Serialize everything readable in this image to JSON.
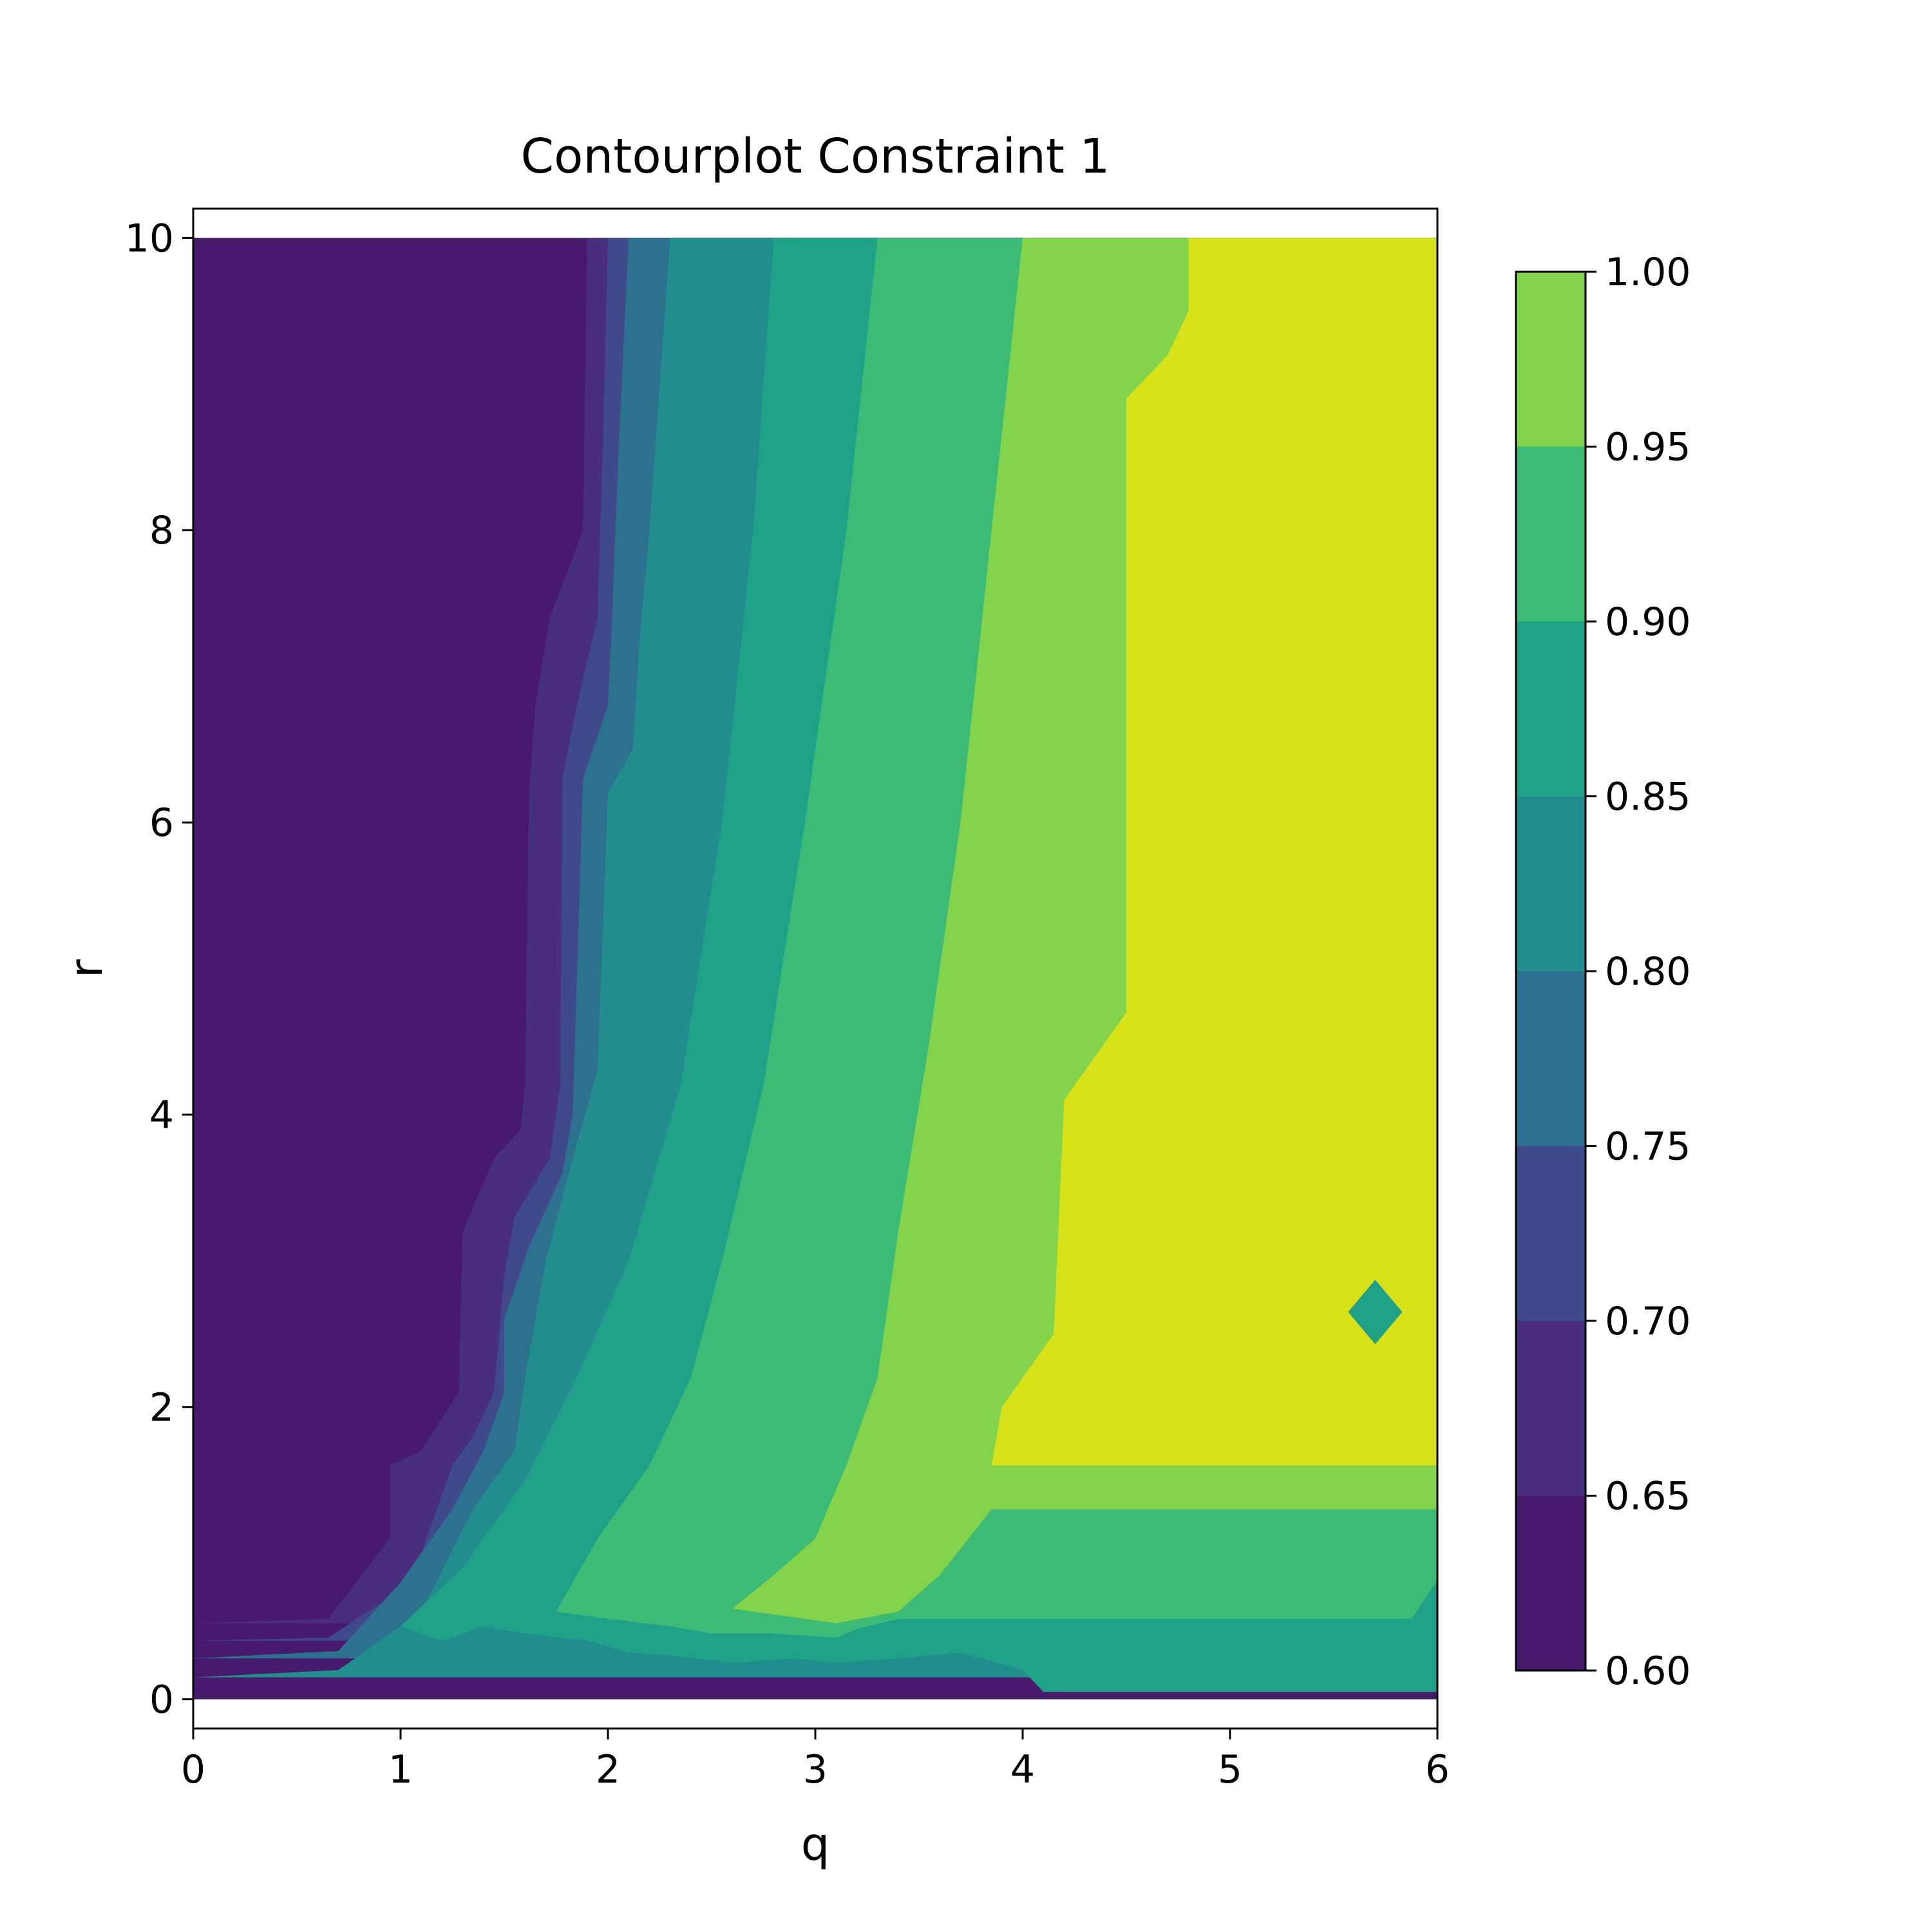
{
  "chart_data": {
    "type": "heatmap",
    "subtype": "filled-contour",
    "title": "Contourplot Constraint 1",
    "xlabel": "q",
    "ylabel": "r",
    "xlim": [
      0,
      6
    ],
    "ylim": [
      -0.2,
      10.2
    ],
    "data_extent": {
      "x": [
        0,
        6
      ],
      "y": [
        0,
        10
      ]
    },
    "x_ticks": [
      0,
      1,
      2,
      3,
      4,
      5,
      6
    ],
    "x_tick_labels": [
      "0",
      "1",
      "2",
      "3",
      "4",
      "5",
      "6"
    ],
    "y_ticks": [
      0,
      2,
      4,
      6,
      8,
      10
    ],
    "y_tick_labels": [
      "0",
      "2",
      "4",
      "6",
      "8",
      "10"
    ],
    "grid": false,
    "colormap": "viridis",
    "levels": [
      0.6,
      0.65,
      0.7,
      0.75,
      0.8,
      0.85,
      0.9,
      0.95,
      1.0
    ],
    "colorbar": {
      "placement": "right",
      "ticks": [
        0.6,
        0.65,
        0.7,
        0.75,
        0.8,
        0.85,
        0.9,
        0.95,
        1.0
      ],
      "tick_labels": [
        "0.60",
        "0.65",
        "0.70",
        "0.75",
        "0.80",
        "0.85",
        "0.90",
        "0.95",
        "1.00"
      ]
    },
    "band_colors": [
      "#481a6c",
      "#472f7d",
      "#3e4a89",
      "#2c728e",
      "#218e8d",
      "#1fa187",
      "#3bbb75",
      "#84d44b",
      "#d8e219"
    ],
    "boundaries": [
      {
        "level": 0.65,
        "points": [
          [
            1.9,
            10
          ],
          [
            1.88,
            8.0
          ],
          [
            1.72,
            7.4
          ],
          [
            1.65,
            6.8
          ],
          [
            1.62,
            6.2
          ],
          [
            1.6,
            4.2
          ],
          [
            1.58,
            3.9
          ],
          [
            1.45,
            3.7
          ],
          [
            1.3,
            3.2
          ],
          [
            1.28,
            2.1
          ],
          [
            1.1,
            1.7
          ],
          [
            0.95,
            1.6
          ],
          [
            0.95,
            1.1
          ],
          [
            0.65,
            0.55
          ],
          [
            0,
            0.52
          ]
        ]
      },
      {
        "level": 0.7,
        "points": [
          [
            2.0,
            10
          ],
          [
            1.98,
            8.8
          ],
          [
            1.95,
            7.4
          ],
          [
            1.85,
            6.8
          ],
          [
            1.78,
            6.3
          ],
          [
            1.77,
            4.2
          ],
          [
            1.72,
            3.7
          ],
          [
            1.55,
            3.3
          ],
          [
            1.5,
            2.9
          ],
          [
            1.45,
            2.1
          ],
          [
            1.35,
            1.8
          ],
          [
            1.25,
            1.6
          ],
          [
            1.1,
            1.0
          ],
          [
            0.95,
            0.7
          ],
          [
            0.65,
            0.42
          ],
          [
            0,
            0.4
          ]
        ]
      },
      {
        "level": 0.75,
        "points": [
          [
            2.1,
            10
          ],
          [
            2.05,
            8.5
          ],
          [
            2.02,
            7.4
          ],
          [
            2.0,
            6.8
          ],
          [
            1.88,
            6.3
          ],
          [
            1.83,
            4.0
          ],
          [
            1.78,
            3.6
          ],
          [
            1.62,
            3.1
          ],
          [
            1.5,
            2.6
          ],
          [
            1.5,
            2.1
          ],
          [
            1.4,
            1.7
          ],
          [
            1.25,
            1.3
          ],
          [
            1.0,
            0.8
          ],
          [
            0.7,
            0.33
          ],
          [
            0,
            0.28
          ]
        ]
      },
      {
        "level": 0.8,
        "points": [
          [
            2.3,
            10
          ],
          [
            2.2,
            8.0
          ],
          [
            2.15,
            7.2
          ],
          [
            2.12,
            6.5
          ],
          [
            2.0,
            6.2
          ],
          [
            1.95,
            4.3
          ],
          [
            1.83,
            3.7
          ],
          [
            1.7,
            3.0
          ],
          [
            1.6,
            2.2
          ],
          [
            1.55,
            1.7
          ],
          [
            1.35,
            1.3
          ],
          [
            1.1,
            0.6
          ],
          [
            0.7,
            0.2
          ],
          [
            0,
            0.15
          ]
        ]
      },
      {
        "level": 0.85,
        "points": [
          [
            2.8,
            10
          ],
          [
            2.7,
            8.0
          ],
          [
            2.55,
            6.0
          ],
          [
            2.35,
            4.2
          ],
          [
            2.1,
            3.0
          ],
          [
            1.85,
            2.2
          ],
          [
            1.6,
            1.5
          ],
          [
            1.3,
            0.9
          ],
          [
            1.0,
            0.5
          ],
          [
            1.2,
            0.4
          ],
          [
            1.4,
            0.5
          ],
          [
            1.6,
            0.45
          ],
          [
            1.9,
            0.4
          ],
          [
            2.1,
            0.32
          ],
          [
            2.3,
            0.3
          ],
          [
            2.6,
            0.25
          ],
          [
            2.9,
            0.28
          ],
          [
            3.1,
            0.25
          ],
          [
            3.4,
            0.28
          ],
          [
            3.7,
            0.32
          ],
          [
            4.0,
            0.2
          ],
          [
            4.1,
            0.05
          ]
        ]
      },
      {
        "level": 0.9,
        "points": [
          [
            3.3,
            10
          ],
          [
            3.15,
            8.0
          ],
          [
            2.95,
            6.0
          ],
          [
            2.75,
            4.2
          ],
          [
            2.55,
            3.0
          ],
          [
            2.4,
            2.2
          ],
          [
            2.2,
            1.6
          ],
          [
            1.95,
            1.1
          ],
          [
            1.75,
            0.6
          ],
          [
            2.0,
            0.55
          ],
          [
            2.3,
            0.5
          ],
          [
            2.5,
            0.45
          ],
          [
            2.8,
            0.45
          ],
          [
            3.1,
            0.42
          ],
          [
            3.2,
            0.48
          ],
          [
            3.4,
            0.55
          ]
        ]
      },
      {
        "level": 0.95,
        "points": [
          [
            4.0,
            10
          ],
          [
            3.85,
            8.0
          ],
          [
            3.7,
            6.0
          ],
          [
            3.55,
            4.5
          ],
          [
            3.4,
            3.2
          ],
          [
            3.3,
            2.2
          ],
          [
            3.15,
            1.6
          ],
          [
            3.0,
            1.1
          ],
          [
            2.8,
            0.85
          ],
          [
            2.6,
            0.62
          ],
          [
            2.8,
            0.58
          ],
          [
            3.1,
            0.52
          ],
          [
            3.4,
            0.6
          ],
          [
            3.6,
            0.85
          ],
          [
            3.85,
            1.3
          ]
        ]
      },
      {
        "level": 1.0,
        "points": [
          [
            4.8,
            10
          ],
          [
            4.8,
            9.5
          ],
          [
            4.7,
            9.2
          ],
          [
            4.5,
            8.9
          ],
          [
            4.5,
            4.7
          ],
          [
            4.3,
            4.3
          ],
          [
            4.2,
            4.1
          ],
          [
            4.15,
            2.5
          ],
          [
            3.9,
            2.0
          ],
          [
            3.85,
            1.6
          ]
        ]
      }
    ],
    "annotations": [
      {
        "type": "diamond",
        "center": [
          5.7,
          2.65
        ],
        "value_band": [
          0.85,
          0.9
        ]
      },
      {
        "type": "half-diamond",
        "center": [
          6.0,
          0.55
        ],
        "value_band": [
          0.85,
          0.9
        ]
      }
    ]
  }
}
